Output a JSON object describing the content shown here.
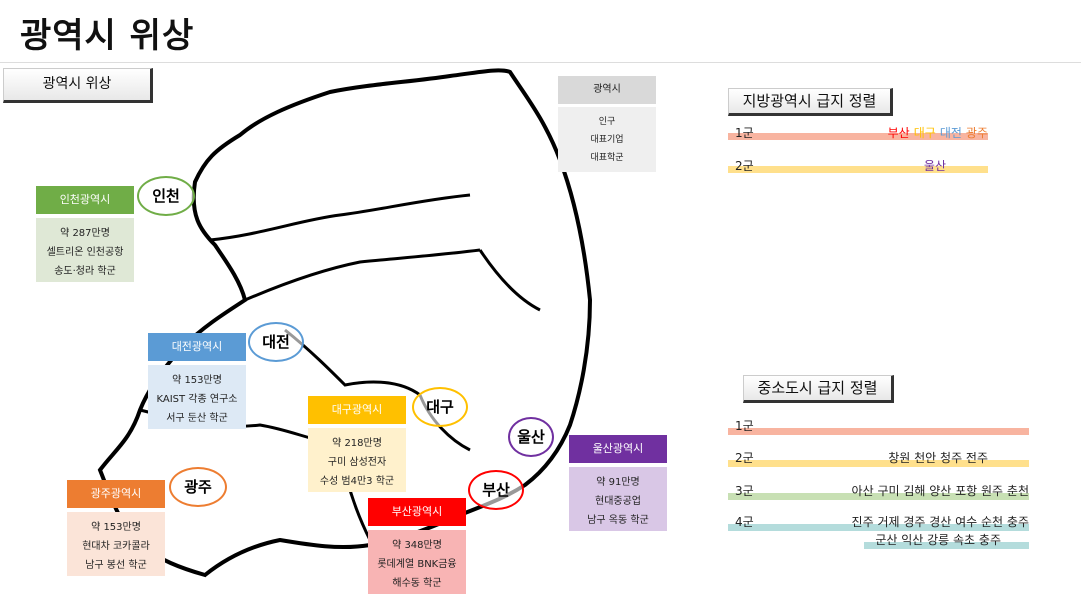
{
  "title": "광역시 위상",
  "section_button": "광역시 위상",
  "legend": {
    "header": "광역시",
    "lines": [
      "인구",
      "대표기업",
      "대표학군"
    ]
  },
  "cities": [
    {
      "key": "incheon",
      "circle": "인천",
      "header": "인천광역시",
      "color": "#70ad47",
      "bg": "#dfe8d6",
      "lines": [
        "약 287만명",
        "셀트리온 인천공항",
        "송도·청라 학군"
      ]
    },
    {
      "key": "daejeon",
      "circle": "대전",
      "header": "대전광역시",
      "color": "#5b9bd5",
      "bg": "#dde9f5",
      "lines": [
        "약 153만명",
        "KAIST 각종 연구소",
        "서구 둔산 학군"
      ]
    },
    {
      "key": "daegu",
      "circle": "대구",
      "header": "대구광역시",
      "color": "#ffc000",
      "bg": "#fff1cc",
      "lines": [
        "약 218만명",
        "구미 삼성전자",
        "수성 범4만3 학군"
      ]
    },
    {
      "key": "gwangju",
      "circle": "광주",
      "header": "광주광역시",
      "color": "#ed7d31",
      "bg": "#fbe4d8",
      "lines": [
        "약 153만명",
        "현대차 코카콜라",
        "남구 봉선 학군"
      ]
    },
    {
      "key": "busan",
      "circle": "부산",
      "header": "부산광역시",
      "color": "#ff0000",
      "bg": "#f8b4b4",
      "lines": [
        "약 348만명",
        "롯데계열 BNK금융",
        "해수동 학군"
      ]
    },
    {
      "key": "ulsan",
      "circle": "울산",
      "header": "울산광역시",
      "color": "#7030a0",
      "bg": "#d9c7e6",
      "lines": [
        "약 91만명",
        "현대중공업",
        "남구 옥동 학군"
      ]
    }
  ],
  "metro_ranking": {
    "title": "지방광역시 급지 정렬",
    "tiers": [
      {
        "label": "1군",
        "color": "#f8b4a0",
        "cities": [
          {
            "name": "부산",
            "color": "#ff0000"
          },
          {
            "name": "대구",
            "color": "#ffc000"
          },
          {
            "name": "대전",
            "color": "#5b9bd5"
          },
          {
            "name": "광주",
            "color": "#ed7d31"
          }
        ]
      },
      {
        "label": "2군",
        "color": "#ffe08c",
        "cities": [
          {
            "name": "울산",
            "color": "#7030a0"
          }
        ]
      }
    ]
  },
  "small_ranking": {
    "title": "중소도시 급지 정렬",
    "tiers": [
      {
        "label": "1군",
        "color": "#f8b4a0",
        "cities": ""
      },
      {
        "label": "2군",
        "color": "#ffe08c",
        "cities": "창원 천안 청주 전주"
      },
      {
        "label": "3군",
        "color": "#c8e0b4",
        "cities": "아산 구미 김해 양산 포항 원주 춘천"
      },
      {
        "label": "4군",
        "color": "#b4dcdc",
        "cities": "진주 거제 경주 경산 여수 순천 충주",
        "cities2": "군산 익산 강릉 속초 충주"
      }
    ]
  }
}
